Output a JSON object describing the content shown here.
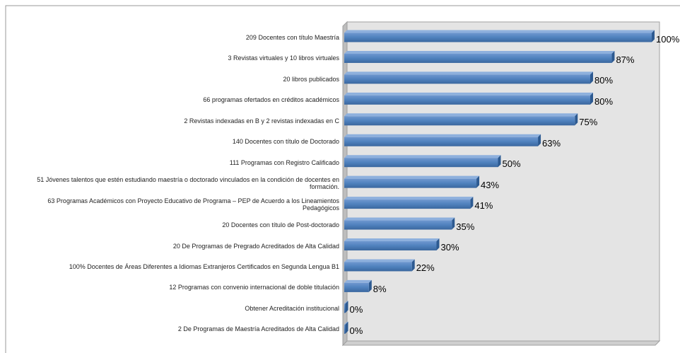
{
  "chart_data": {
    "type": "bar",
    "orientation": "horizontal",
    "color": "#4f81bd",
    "categories": [
      "209 Docentes con título Maestría",
      "3 Revistas virtuales y 10 libros virtuales",
      "20 libros publicados",
      "66  programas ofertados en créditos académicos",
      "2 Revistas indexadas en B y 2 revistas indexadas en C",
      "140 Docentes con título de Doctorado",
      "111 Programas con Registro Calificado",
      "51 Jóvenes talentos que estén estudiando maestría o doctorado vinculados en la condición de docentes en formación.",
      "63 Programas Académicos con Proyecto Educativo de Programa – PEP de Acuerdo a los Lineamientos Pedagógicos",
      "20 Docentes con título de Post-doctorado",
      "20 De Programas de Pregrado Acreditados de Alta Calidad",
      "100% Docentes de Áreas Diferentes a Idiomas Extranjeros Certificados en Segunda Lengua B1",
      "12 Programas con convenio internacional de doble titulación",
      "Obtener Acreditación institucional",
      "2 De Programas de Maestría Acreditados de Alta Calidad"
    ],
    "values": [
      100,
      87,
      80,
      80,
      75,
      63,
      50,
      43,
      41,
      35,
      30,
      22,
      8,
      0,
      0
    ],
    "value_labels": [
      "100%",
      "87%",
      "80%",
      "80%",
      "75%",
      "63%",
      "50%",
      "43%",
      "41%",
      "35%",
      "30%",
      "22%",
      "8%",
      "0%",
      "0%"
    ]
  }
}
